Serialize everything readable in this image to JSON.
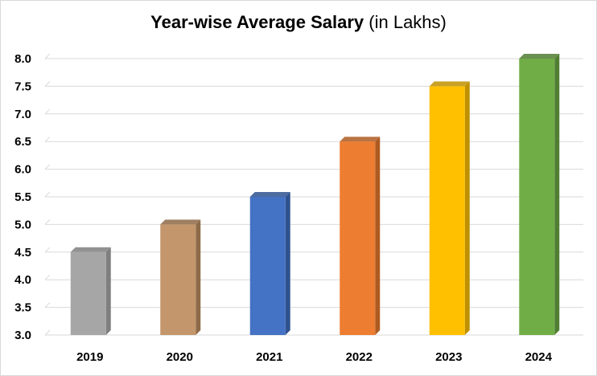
{
  "chart_data": {
    "type": "bar",
    "title": "Year-wise Average Salary",
    "subtitle": "(in Lakhs)",
    "categories": [
      "2019",
      "2020",
      "2021",
      "2022",
      "2023",
      "2024"
    ],
    "values": [
      4.5,
      5.0,
      5.5,
      6.5,
      7.5,
      8.0
    ],
    "colors": [
      "#a6a6a6",
      "#c4966b",
      "#4472c4",
      "#ed7d31",
      "#ffc000",
      "#70ad47"
    ],
    "side_colors": [
      "#7f7f7f",
      "#8e6a48",
      "#2f528f",
      "#ae5a21",
      "#bf9000",
      "#507e32"
    ],
    "ylim": [
      3.0,
      8.0
    ],
    "yticks": [
      "3.0",
      "3.5",
      "4.0",
      "4.5",
      "5.0",
      "5.5",
      "6.0",
      "6.5",
      "7.0",
      "7.5",
      "8.0"
    ],
    "xlabel": "",
    "ylabel": "",
    "grid": true,
    "legend": "none",
    "style": "3d-columns"
  }
}
